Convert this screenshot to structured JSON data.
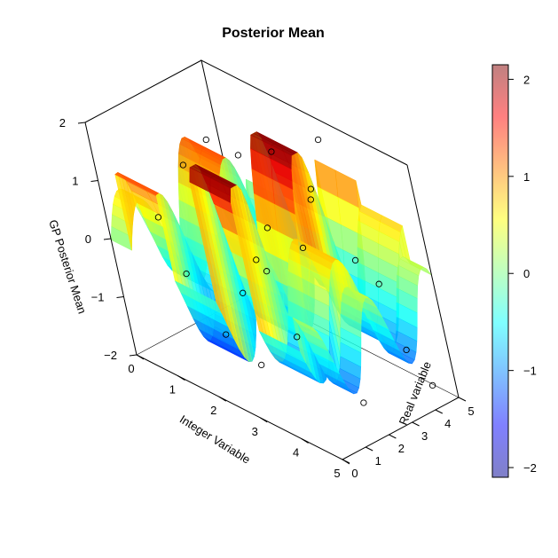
{
  "chart_data": {
    "type": "surface3d",
    "title": "Posterior Mean",
    "xlabel": "Integer Variable",
    "ylabel": "Real variable",
    "zlabel": "GP Posterior Mean",
    "xlim": [
      0,
      5
    ],
    "ylim": [
      0,
      5
    ],
    "zlim": [
      -2,
      2
    ],
    "x_ticks": [
      "0",
      "1",
      "2",
      "3",
      "4",
      "5"
    ],
    "y_ticks": [
      "0",
      "1",
      "2",
      "3",
      "4",
      "5"
    ],
    "z_ticks": [
      "−2",
      "−1",
      "0",
      "1",
      "2"
    ],
    "colorbar": {
      "ticks": [
        "−2",
        "−1",
        "0",
        "1",
        "2"
      ],
      "range": [
        -2.1,
        2.15
      ],
      "colors": [
        "#00008f",
        "#0000ff",
        "#0080ff",
        "#00ffff",
        "#80ff80",
        "#ffff00",
        "#ff8000",
        "#ff0000",
        "#800000"
      ],
      "opacity": 0.5
    },
    "integer_levels": [
      0,
      1,
      2,
      3,
      4,
      5
    ],
    "observations": [
      {
        "x": 1,
        "y": 2.0,
        "z": 1.2
      },
      {
        "x": 1,
        "y": 3.1,
        "z": 1.4
      },
      {
        "x": 1,
        "y": 4.2,
        "z": 0.9
      },
      {
        "x": 1,
        "y": 1.2,
        "z": -0.5
      },
      {
        "x": 1,
        "y": 0.6,
        "z": 0.6
      },
      {
        "x": 2,
        "y": 0.8,
        "z": -1.1
      },
      {
        "x": 2,
        "y": 1.8,
        "z": -0.6
      },
      {
        "x": 2,
        "y": 3.3,
        "z": 0.2
      },
      {
        "x": 2,
        "y": 4.5,
        "z": -0.4
      },
      {
        "x": 2,
        "y": 2.6,
        "z": -0.2
      },
      {
        "x": 3,
        "y": 0.5,
        "z": -1.2
      },
      {
        "x": 3,
        "y": 1.5,
        "z": 0.2
      },
      {
        "x": 3,
        "y": 2.7,
        "z": 2.0
      },
      {
        "x": 3,
        "y": 3.9,
        "z": 1.1
      },
      {
        "x": 3,
        "y": 4.6,
        "z": 1.8
      },
      {
        "x": 4,
        "y": 0.7,
        "z": -0.4
      },
      {
        "x": 4,
        "y": 2.4,
        "z": 1.6
      },
      {
        "x": 4,
        "y": 3.6,
        "z": 0.3
      },
      {
        "x": 4,
        "y": 4.8,
        "z": -1.5
      },
      {
        "x": 5,
        "y": 1.3,
        "z": -1.3
      },
      {
        "x": 5,
        "y": 2.9,
        "z": 0.4
      },
      {
        "x": 5,
        "y": 4.1,
        "z": -1.6
      }
    ],
    "grid": false,
    "legend": "right"
  }
}
